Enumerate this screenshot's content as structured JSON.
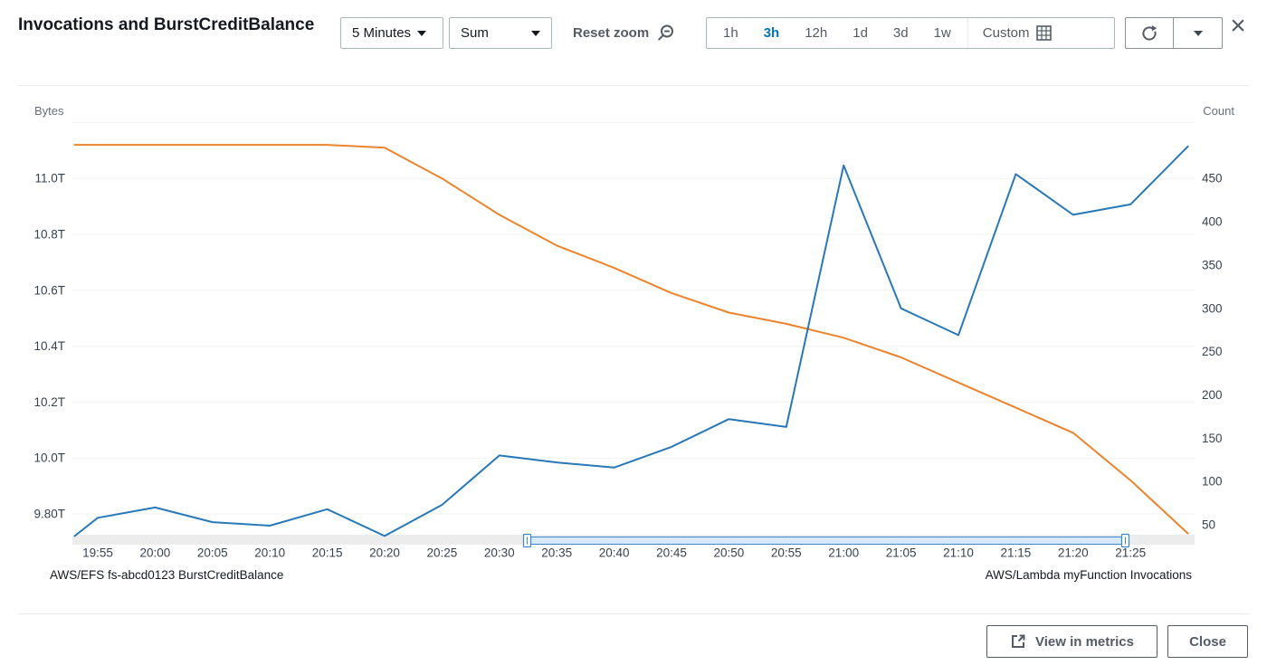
{
  "dialog": {
    "title": "Invocations and BurstCreditBalance"
  },
  "toolbar": {
    "period_selector": {
      "value": "5 Minutes"
    },
    "statistic_selector": {
      "value": "Sum"
    },
    "reset_zoom_label": "Reset zoom",
    "time_range": {
      "options": [
        "1h",
        "3h",
        "12h",
        "1d",
        "3d",
        "1w"
      ],
      "active": "3h",
      "custom_label": "Custom"
    }
  },
  "chart_data": {
    "type": "line",
    "title": "Invocations and BurstCreditBalance",
    "grid": true,
    "legend_position": "bottom",
    "x_axis": {
      "tick_labels": [
        "19:55",
        "20:00",
        "20:05",
        "20:10",
        "20:15",
        "20:20",
        "20:25",
        "20:30",
        "20:35",
        "20:40",
        "20:45",
        "20:50",
        "20:55",
        "21:00",
        "21:05",
        "21:10",
        "21:15",
        "21:20",
        "21:25"
      ],
      "tick_minutes": [
        0,
        5,
        10,
        15,
        20,
        25,
        30,
        35,
        40,
        45,
        50,
        55,
        60,
        65,
        70,
        75,
        80,
        85,
        90
      ]
    },
    "left_axis": {
      "label": "Bytes",
      "tick_labels": [
        "11.0T",
        "10.8T",
        "10.6T",
        "10.4T",
        "10.2T",
        "10.0T",
        "9.80T"
      ],
      "tick_values": [
        11.0,
        10.8,
        10.6,
        10.4,
        10.2,
        10.0,
        9.8
      ],
      "gridline_extra_values": [
        11.2
      ],
      "range": [
        9.72,
        11.2
      ]
    },
    "right_axis": {
      "label": "Count",
      "tick_labels": [
        "450",
        "400",
        "350",
        "300",
        "250",
        "200",
        "150",
        "100",
        "50"
      ],
      "tick_values": [
        450,
        400,
        350,
        300,
        250,
        200,
        150,
        100,
        50
      ],
      "range": [
        37,
        490
      ]
    },
    "series": [
      {
        "name": "AWS/EFS fs-abcd0123 BurstCreditBalance",
        "axis": "left",
        "color": "#ec832d",
        "points_time_value": [
          [
            "19:53",
            11.12
          ],
          [
            "19:55",
            11.12
          ],
          [
            "20:00",
            11.12
          ],
          [
            "20:05",
            11.12
          ],
          [
            "20:10",
            11.12
          ],
          [
            "20:15",
            11.12
          ],
          [
            "20:20",
            11.11
          ],
          [
            "20:25",
            11.0
          ],
          [
            "20:30",
            10.87
          ],
          [
            "20:35",
            10.76
          ],
          [
            "20:40",
            10.68
          ],
          [
            "20:45",
            10.59
          ],
          [
            "20:50",
            10.52
          ],
          [
            "20:55",
            10.48
          ],
          [
            "21:00",
            10.43
          ],
          [
            "21:05",
            10.36
          ],
          [
            "21:10",
            10.27
          ],
          [
            "21:15",
            10.18
          ],
          [
            "21:20",
            10.09
          ],
          [
            "21:25",
            9.92
          ],
          [
            "21:30",
            9.73
          ]
        ]
      },
      {
        "name": "AWS/Lambda myFunction Invocations",
        "axis": "right",
        "color": "#2878b8",
        "points_time_value": [
          [
            "19:53",
            37
          ],
          [
            "19:55",
            58
          ],
          [
            "20:00",
            70
          ],
          [
            "20:05",
            53
          ],
          [
            "20:10",
            49
          ],
          [
            "20:15",
            68
          ],
          [
            "20:20",
            37
          ],
          [
            "20:25",
            73
          ],
          [
            "20:30",
            130
          ],
          [
            "20:35",
            122
          ],
          [
            "20:40",
            116
          ],
          [
            "20:45",
            140
          ],
          [
            "20:50",
            172
          ],
          [
            "20:55",
            163
          ],
          [
            "21:00",
            465
          ],
          [
            "21:05",
            300
          ],
          [
            "21:10",
            269
          ],
          [
            "21:15",
            455
          ],
          [
            "21:20",
            408
          ],
          [
            "21:25",
            420
          ],
          [
            "21:30",
            487
          ]
        ]
      }
    ]
  },
  "footer": {
    "view_in_metrics_label": "View in metrics",
    "close_label": "Close"
  },
  "colors": {
    "accent_blue": "#0073bb",
    "series_orange": "#ec832d",
    "series_blue": "#2878b8",
    "button_text": "#545b64"
  }
}
